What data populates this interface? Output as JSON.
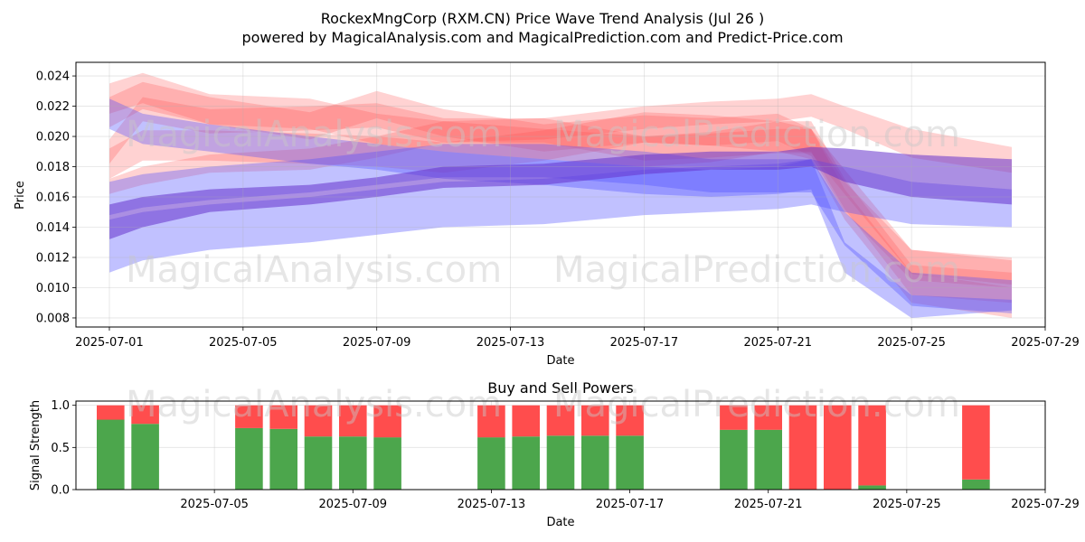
{
  "title": "RockexMngCorp (RXM.CN) Price Wave Trend Analysis (Jul 26 )",
  "subtitle": "powered by MagicalAnalysis.com and MagicalPrediction.com and Predict-Price.com",
  "watermarks": [
    "MagicalAnalysis.com",
    "MagicalPrediction.com"
  ],
  "colors": {
    "red_band": "#ff4d4d",
    "blue_band": "#4d4dff",
    "purple_band": "#6633cc",
    "buy": "#4ca64c",
    "sell": "#ff4d4d"
  },
  "chart_data": [
    {
      "type": "area",
      "title": "",
      "xlabel": "Date",
      "ylabel": "Price",
      "x_ticks": [
        "2025-07-01",
        "2025-07-05",
        "2025-07-09",
        "2025-07-13",
        "2025-07-17",
        "2025-07-21",
        "2025-07-25",
        "2025-07-29"
      ],
      "y_ticks": [
        0.008,
        0.01,
        0.012,
        0.014,
        0.016,
        0.018,
        0.02,
        0.022,
        0.024
      ],
      "xlim": [
        "2025-06-30",
        "2025-07-29"
      ],
      "ylim": [
        0.0074,
        0.0249
      ],
      "grid": true,
      "x": [
        "2025-07-01",
        "2025-07-02",
        "2025-07-04",
        "2025-07-07",
        "2025-07-09",
        "2025-07-11",
        "2025-07-14",
        "2025-07-17",
        "2025-07-19",
        "2025-07-21",
        "2025-07-22",
        "2025-07-23",
        "2025-07-25",
        "2025-07-28"
      ],
      "series": [
        {
          "color": "red",
          "upper": [
            0.0198,
            0.0226,
            0.0218,
            0.022,
            0.0222,
            0.0212,
            0.0212,
            0.02,
            0.0202,
            0.0205,
            0.0205,
            0.0178,
            0.0125,
            0.0118
          ],
          "lower": [
            0.0182,
            0.021,
            0.0202,
            0.0204,
            0.0206,
            0.0196,
            0.0196,
            0.0184,
            0.0186,
            0.0189,
            0.0189,
            0.0162,
            0.0109,
            0.0102
          ]
        },
        {
          "color": "red",
          "upper": [
            0.0235,
            0.0242,
            0.0228,
            0.0225,
            0.0215,
            0.021,
            0.0205,
            0.02,
            0.0203,
            0.021,
            0.021,
            0.0172,
            0.0115,
            0.011
          ],
          "lower": [
            0.0215,
            0.0222,
            0.0208,
            0.0205,
            0.0195,
            0.019,
            0.0185,
            0.018,
            0.0183,
            0.019,
            0.019,
            0.0152,
            0.0095,
            0.009
          ]
        },
        {
          "color": "red",
          "upper": [
            0.0226,
            0.0236,
            0.0226,
            0.0216,
            0.023,
            0.0218,
            0.0208,
            0.0214,
            0.0212,
            0.0215,
            0.0205,
            0.017,
            0.0125,
            0.012
          ],
          "lower": [
            0.0206,
            0.0218,
            0.0208,
            0.0198,
            0.0212,
            0.02,
            0.019,
            0.0196,
            0.0194,
            0.0197,
            0.0187,
            0.015,
            0.0105,
            0.01
          ]
        },
        {
          "color": "red",
          "upper": [
            0.0192,
            0.0204,
            0.0204,
            0.0202,
            0.02,
            0.0196,
            0.0204,
            0.0216,
            0.0214,
            0.021,
            0.0205,
            0.0165,
            0.011,
            0.01
          ],
          "lower": [
            0.0172,
            0.0184,
            0.0184,
            0.0182,
            0.018,
            0.0176,
            0.0184,
            0.0196,
            0.0194,
            0.019,
            0.0185,
            0.0145,
            0.009,
            0.008
          ]
        },
        {
          "color": "red",
          "upper": [
            0.0172,
            0.018,
            0.0188,
            0.0192,
            0.02,
            0.021,
            0.0212,
            0.022,
            0.0223,
            0.0225,
            0.0228,
            0.022,
            0.0205,
            0.0193
          ],
          "lower": [
            0.0162,
            0.0168,
            0.0176,
            0.0178,
            0.0186,
            0.0196,
            0.0198,
            0.0205,
            0.0208,
            0.021,
            0.0213,
            0.0205,
            0.0186,
            0.0176
          ]
        },
        {
          "color": "blue",
          "upper": [
            0.0145,
            0.015,
            0.0155,
            0.016,
            0.0165,
            0.017,
            0.0172,
            0.0178,
            0.018,
            0.0182,
            0.0185,
            0.018,
            0.017,
            0.0165
          ],
          "lower": [
            0.011,
            0.0118,
            0.0125,
            0.013,
            0.0135,
            0.014,
            0.0142,
            0.0148,
            0.015,
            0.0152,
            0.0155,
            0.015,
            0.0142,
            0.014
          ]
        },
        {
          "color": "blue",
          "upper": [
            0.017,
            0.0175,
            0.018,
            0.0185,
            0.019,
            0.0195,
            0.0195,
            0.019,
            0.0185,
            0.0185,
            0.0185,
            0.015,
            0.011,
            0.0105
          ]
        },
        {
          "color": "blue",
          "upper": [
            0.0225,
            0.0215,
            0.0208,
            0.02,
            0.0195,
            0.019,
            0.0185,
            0.018,
            0.0178,
            0.018,
            0.0185,
            0.013,
            0.0095,
            0.0092
          ],
          "lower": [
            0.0205,
            0.0195,
            0.019,
            0.0182,
            0.0178,
            0.0172,
            0.0168,
            0.0162,
            0.016,
            0.0162,
            0.0165,
            0.011,
            0.008,
            0.0085
          ]
        },
        {
          "color": "purple",
          "upper": [
            0.0155,
            0.016,
            0.0165,
            0.0168,
            0.0173,
            0.018,
            0.0182,
            0.0188,
            0.019,
            0.019,
            0.0193,
            0.0192,
            0.0188,
            0.0185
          ],
          "lower": [
            0.0132,
            0.014,
            0.015,
            0.0155,
            0.016,
            0.0166,
            0.0168,
            0.0175,
            0.0178,
            0.0178,
            0.018,
            0.017,
            0.016,
            0.0155
          ]
        }
      ]
    },
    {
      "type": "bar",
      "title": "Buy and Sell Powers",
      "xlabel": "Date",
      "ylabel": "Signal Strength",
      "x_ticks": [
        "2025-07-05",
        "2025-07-09",
        "2025-07-13",
        "2025-07-17",
        "2025-07-21",
        "2025-07-25",
        "2025-07-29"
      ],
      "y_ticks": [
        0.0,
        0.5,
        1.0
      ],
      "xlim": [
        "2025-07-01",
        "2025-07-29"
      ],
      "ylim": [
        0,
        1.05
      ],
      "grid": true,
      "categories": [
        "2025-07-02",
        "2025-07-03",
        "2025-07-06",
        "2025-07-07",
        "2025-07-08",
        "2025-07-09",
        "2025-07-10",
        "2025-07-13",
        "2025-07-14",
        "2025-07-15",
        "2025-07-16",
        "2025-07-17",
        "2025-07-20",
        "2025-07-21",
        "2025-07-22",
        "2025-07-23",
        "2025-07-24",
        "2025-07-27"
      ],
      "series": [
        {
          "name": "buy",
          "values": [
            0.83,
            0.78,
            0.73,
            0.72,
            0.63,
            0.63,
            0.62,
            0.62,
            0.63,
            0.64,
            0.64,
            0.64,
            0.71,
            0.71,
            0.0,
            0.0,
            0.05,
            0.12
          ]
        },
        {
          "name": "sell",
          "values": [
            0.17,
            0.22,
            0.27,
            0.28,
            0.37,
            0.37,
            0.38,
            0.38,
            0.37,
            0.36,
            0.36,
            0.36,
            0.29,
            0.29,
            1.0,
            1.0,
            0.95,
            0.88
          ]
        }
      ]
    }
  ]
}
